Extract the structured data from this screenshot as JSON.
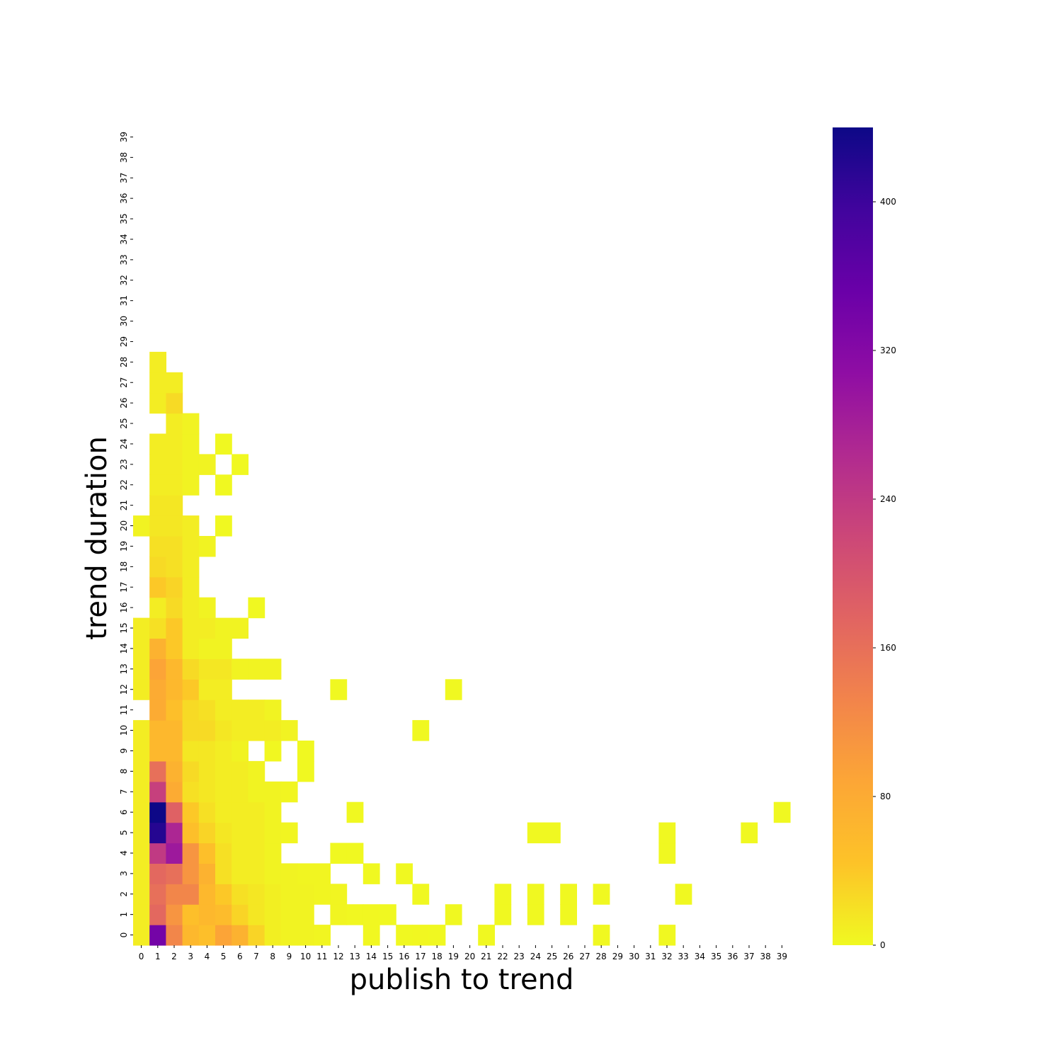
{
  "chart_data": {
    "type": "heatmap",
    "title": "",
    "xlabel": "publish to trend",
    "ylabel": "trend duration",
    "x_categories": [
      "0",
      "1",
      "2",
      "3",
      "4",
      "5",
      "6",
      "7",
      "8",
      "9",
      "10",
      "11",
      "12",
      "13",
      "14",
      "15",
      "16",
      "17",
      "18",
      "19",
      "20",
      "21",
      "22",
      "23",
      "24",
      "25",
      "26",
      "27",
      "28",
      "29",
      "30",
      "31",
      "32",
      "33",
      "34",
      "35",
      "36",
      "37",
      "38",
      "39"
    ],
    "y_categories": [
      "0",
      "1",
      "2",
      "3",
      "4",
      "5",
      "6",
      "7",
      "8",
      "9",
      "10",
      "11",
      "12",
      "13",
      "14",
      "15",
      "16",
      "17",
      "18",
      "19",
      "20",
      "21",
      "22",
      "23",
      "24",
      "25",
      "26",
      "27",
      "28",
      "29",
      "30",
      "31",
      "32",
      "33",
      "34",
      "35",
      "36",
      "37",
      "38",
      "39"
    ],
    "y_order": "bottom-to-top",
    "colormap": "plasma_r",
    "colorbar": {
      "min": 0,
      "max": 440,
      "ticks": [
        "0",
        "80",
        "160",
        "240",
        "320",
        "400"
      ],
      "tick_values": [
        0,
        80,
        160,
        240,
        320,
        400
      ]
    },
    "missing_cells": "blank (no count)",
    "cells": [
      [
        0,
        0,
        10
      ],
      [
        1,
        0,
        340
      ],
      [
        2,
        0,
        130
      ],
      [
        3,
        0,
        60
      ],
      [
        4,
        0,
        50
      ],
      [
        5,
        0,
        90
      ],
      [
        6,
        0,
        70
      ],
      [
        7,
        0,
        30
      ],
      [
        8,
        0,
        8
      ],
      [
        9,
        0,
        5
      ],
      [
        10,
        0,
        5
      ],
      [
        11,
        0,
        3
      ],
      [
        14,
        0,
        2
      ],
      [
        16,
        0,
        1
      ],
      [
        17,
        0,
        2
      ],
      [
        18,
        0,
        1
      ],
      [
        21,
        0,
        1
      ],
      [
        28,
        0,
        1
      ],
      [
        32,
        0,
        1
      ],
      [
        0,
        1,
        10
      ],
      [
        1,
        1,
        170
      ],
      [
        2,
        1,
        110
      ],
      [
        3,
        1,
        50
      ],
      [
        4,
        1,
        60
      ],
      [
        5,
        1,
        55
      ],
      [
        6,
        1,
        30
      ],
      [
        7,
        1,
        15
      ],
      [
        8,
        1,
        8
      ],
      [
        9,
        1,
        5
      ],
      [
        10,
        1,
        5
      ],
      [
        12,
        1,
        3
      ],
      [
        13,
        1,
        2
      ],
      [
        14,
        1,
        2
      ],
      [
        15,
        1,
        1
      ],
      [
        19,
        1,
        1
      ],
      [
        22,
        1,
        1
      ],
      [
        24,
        1,
        1
      ],
      [
        26,
        1,
        1
      ],
      [
        0,
        2,
        10
      ],
      [
        1,
        2,
        160
      ],
      [
        2,
        2,
        130
      ],
      [
        3,
        2,
        130
      ],
      [
        4,
        2,
        60
      ],
      [
        5,
        2,
        40
      ],
      [
        6,
        2,
        20
      ],
      [
        7,
        2,
        15
      ],
      [
        8,
        2,
        8
      ],
      [
        9,
        2,
        5
      ],
      [
        10,
        2,
        5
      ],
      [
        11,
        2,
        3
      ],
      [
        12,
        2,
        3
      ],
      [
        17,
        2,
        1
      ],
      [
        22,
        2,
        1
      ],
      [
        24,
        2,
        1
      ],
      [
        26,
        2,
        1
      ],
      [
        28,
        2,
        1
      ],
      [
        33,
        2,
        1
      ],
      [
        0,
        3,
        10
      ],
      [
        1,
        3,
        170
      ],
      [
        2,
        3,
        160
      ],
      [
        3,
        3,
        110
      ],
      [
        4,
        3,
        70
      ],
      [
        5,
        3,
        20
      ],
      [
        6,
        3,
        10
      ],
      [
        7,
        3,
        10
      ],
      [
        8,
        3,
        5
      ],
      [
        9,
        3,
        5
      ],
      [
        10,
        3,
        3
      ],
      [
        11,
        3,
        3
      ],
      [
        14,
        3,
        1
      ],
      [
        16,
        3,
        1
      ],
      [
        0,
        4,
        10
      ],
      [
        1,
        4,
        240
      ],
      [
        2,
        4,
        290
      ],
      [
        3,
        4,
        110
      ],
      [
        4,
        4,
        50
      ],
      [
        5,
        4,
        20
      ],
      [
        6,
        4,
        10
      ],
      [
        7,
        4,
        10
      ],
      [
        8,
        4,
        5
      ],
      [
        12,
        4,
        1
      ],
      [
        13,
        4,
        1
      ],
      [
        32,
        4,
        1
      ],
      [
        0,
        5,
        10
      ],
      [
        1,
        5,
        420
      ],
      [
        2,
        5,
        270
      ],
      [
        3,
        5,
        50
      ],
      [
        4,
        5,
        30
      ],
      [
        5,
        5,
        15
      ],
      [
        6,
        5,
        10
      ],
      [
        7,
        5,
        10
      ],
      [
        8,
        5,
        5
      ],
      [
        9,
        5,
        3
      ],
      [
        24,
        5,
        1
      ],
      [
        25,
        5,
        1
      ],
      [
        32,
        5,
        1
      ],
      [
        37,
        5,
        1
      ],
      [
        0,
        6,
        10
      ],
      [
        1,
        6,
        440
      ],
      [
        2,
        6,
        180
      ],
      [
        3,
        6,
        40
      ],
      [
        4,
        6,
        20
      ],
      [
        5,
        6,
        10
      ],
      [
        6,
        6,
        10
      ],
      [
        7,
        6,
        10
      ],
      [
        8,
        6,
        5
      ],
      [
        13,
        6,
        1
      ],
      [
        39,
        6,
        1
      ],
      [
        0,
        7,
        10
      ],
      [
        1,
        7,
        230
      ],
      [
        2,
        7,
        80
      ],
      [
        3,
        7,
        20
      ],
      [
        4,
        7,
        15
      ],
      [
        5,
        7,
        10
      ],
      [
        6,
        7,
        10
      ],
      [
        7,
        7,
        5
      ],
      [
        8,
        7,
        5
      ],
      [
        9,
        7,
        3
      ],
      [
        0,
        8,
        10
      ],
      [
        1,
        8,
        160
      ],
      [
        2,
        8,
        70
      ],
      [
        3,
        8,
        25
      ],
      [
        4,
        8,
        15
      ],
      [
        5,
        8,
        10
      ],
      [
        6,
        8,
        10
      ],
      [
        7,
        8,
        5
      ],
      [
        10,
        8,
        1
      ],
      [
        0,
        9,
        10
      ],
      [
        1,
        9,
        60
      ],
      [
        2,
        9,
        60
      ],
      [
        3,
        9,
        15
      ],
      [
        4,
        9,
        15
      ],
      [
        5,
        9,
        10
      ],
      [
        6,
        9,
        5
      ],
      [
        8,
        9,
        2
      ],
      [
        10,
        9,
        1
      ],
      [
        0,
        10,
        10
      ],
      [
        1,
        10,
        60
      ],
      [
        2,
        10,
        60
      ],
      [
        3,
        10,
        25
      ],
      [
        4,
        10,
        25
      ],
      [
        5,
        10,
        15
      ],
      [
        6,
        10,
        10
      ],
      [
        7,
        10,
        10
      ],
      [
        8,
        10,
        10
      ],
      [
        9,
        10,
        5
      ],
      [
        17,
        10,
        1
      ],
      [
        1,
        11,
        80
      ],
      [
        2,
        11,
        50
      ],
      [
        3,
        11,
        25
      ],
      [
        4,
        11,
        20
      ],
      [
        5,
        11,
        10
      ],
      [
        6,
        11,
        10
      ],
      [
        7,
        11,
        10
      ],
      [
        8,
        11,
        5
      ],
      [
        0,
        12,
        10
      ],
      [
        1,
        12,
        80
      ],
      [
        2,
        12,
        60
      ],
      [
        3,
        12,
        40
      ],
      [
        4,
        12,
        10
      ],
      [
        5,
        12,
        10
      ],
      [
        12,
        12,
        1
      ],
      [
        19,
        12,
        1
      ],
      [
        0,
        13,
        10
      ],
      [
        1,
        13,
        90
      ],
      [
        2,
        13,
        60
      ],
      [
        3,
        13,
        25
      ],
      [
        4,
        13,
        15
      ],
      [
        5,
        13,
        15
      ],
      [
        6,
        13,
        5
      ],
      [
        7,
        13,
        5
      ],
      [
        8,
        13,
        5
      ],
      [
        0,
        14,
        10
      ],
      [
        1,
        14,
        70
      ],
      [
        2,
        14,
        40
      ],
      [
        3,
        14,
        10
      ],
      [
        4,
        14,
        5
      ],
      [
        5,
        14,
        5
      ],
      [
        0,
        15,
        10
      ],
      [
        1,
        15,
        20
      ],
      [
        2,
        15,
        40
      ],
      [
        3,
        15,
        10
      ],
      [
        4,
        15,
        10
      ],
      [
        5,
        15,
        5
      ],
      [
        6,
        15,
        5
      ],
      [
        1,
        16,
        10
      ],
      [
        2,
        16,
        25
      ],
      [
        3,
        16,
        10
      ],
      [
        4,
        16,
        5
      ],
      [
        7,
        16,
        1
      ],
      [
        1,
        17,
        40
      ],
      [
        2,
        17,
        30
      ],
      [
        3,
        17,
        10
      ],
      [
        1,
        18,
        25
      ],
      [
        2,
        18,
        20
      ],
      [
        3,
        18,
        10
      ],
      [
        1,
        19,
        20
      ],
      [
        2,
        19,
        20
      ],
      [
        3,
        19,
        10
      ],
      [
        4,
        19,
        5
      ],
      [
        0,
        20,
        5
      ],
      [
        1,
        20,
        15
      ],
      [
        2,
        20,
        15
      ],
      [
        3,
        20,
        10
      ],
      [
        5,
        20,
        1
      ],
      [
        1,
        21,
        15
      ],
      [
        2,
        21,
        15
      ],
      [
        1,
        22,
        10
      ],
      [
        2,
        22,
        10
      ],
      [
        3,
        22,
        5
      ],
      [
        5,
        22,
        1
      ],
      [
        1,
        23,
        10
      ],
      [
        2,
        23,
        10
      ],
      [
        3,
        23,
        5
      ],
      [
        4,
        23,
        5
      ],
      [
        6,
        23,
        1
      ],
      [
        1,
        24,
        10
      ],
      [
        2,
        24,
        10
      ],
      [
        3,
        24,
        5
      ],
      [
        5,
        24,
        1
      ],
      [
        2,
        25,
        10
      ],
      [
        3,
        25,
        5
      ],
      [
        1,
        26,
        10
      ],
      [
        2,
        26,
        25
      ],
      [
        1,
        27,
        10
      ],
      [
        2,
        27,
        10
      ],
      [
        1,
        28,
        10
      ]
    ]
  }
}
